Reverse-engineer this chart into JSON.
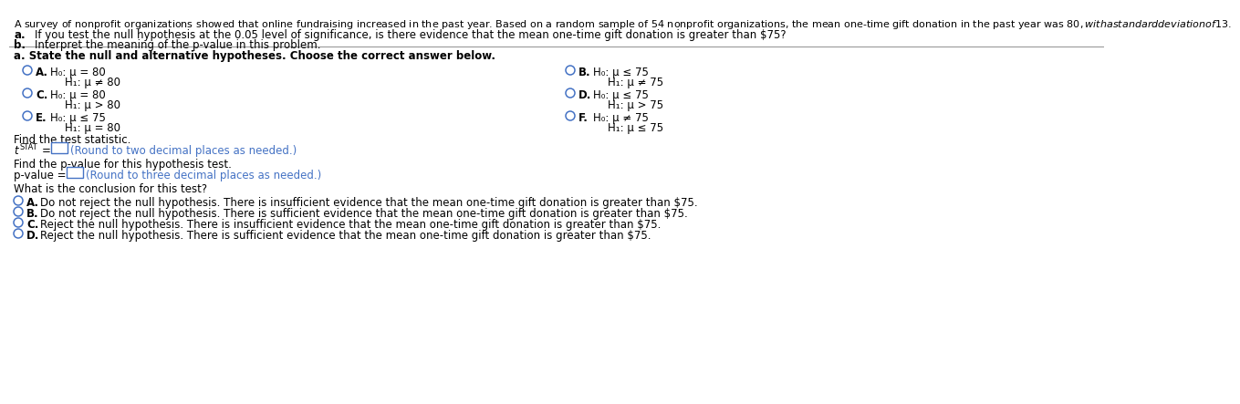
{
  "bg_color": "#ffffff",
  "header_text": "A survey of nonprofit organizations showed that online fundraising increased in the past year. Based on a random sample of 54 nonprofit organizations, the mean one-time gift donation in the past year was $80, with a standard deviation of $13.",
  "item_a_bold": "a.",
  "item_a_text": "     If you test the null hypothesis at the 0.05 level of significance, is there evidence that the mean one-time gift donation is greater than $75?",
  "item_b_bold": "b.",
  "item_b_text": "     Interpret the meaning of the p-value in this problem.",
  "section_a": "a. State the null and alternative hypotheses. Choose the correct answer below.",
  "optA_line1": "H₀: μ = 80",
  "optA_line2": "H₁: μ ≠ 80",
  "optB_line1": "H₀: μ ≤ 75",
  "optB_line2": "H₁: μ ≠ 75",
  "optC_line1": "H₀: μ = 80",
  "optC_line2": "H₁: μ > 80",
  "optD_line1": "H₀: μ ≤ 75",
  "optD_line2": "H₁: μ > 75",
  "optE_line1": "H₀: μ ≤ 75",
  "optE_line2": "H₁: μ = 80",
  "optF_line1": "H₀: μ ≠ 75",
  "optF_line2": "H₁: μ ≤ 75",
  "find_tstat": "Find the test statistic.",
  "find_pvalue": "Find the p-value for this hypothesis test.",
  "tstat_round": "(Round to two decimal places as needed.)",
  "pvalue_round": "(Round to three decimal places as needed.)",
  "conclusion_header": "What is the conclusion for this test?",
  "concl_A": "Do not reject the null hypothesis. There is insufficient evidence that the mean one-time gift donation is greater than $75.",
  "concl_B": "Do not reject the null hypothesis. There is sufficient evidence that the mean one-time gift donation is greater than $75.",
  "concl_C": "Reject the null hypothesis. There is insufficient evidence that the mean one-time gift donation is greater than $75.",
  "concl_D": "Reject the null hypothesis. There is sufficient evidence that the mean one-time gift donation is greater than $75.",
  "text_color": "#000000",
  "blue_color": "#4472c4",
  "divider_color": "#999999",
  "fs_header": 8.0,
  "fs_body": 8.5,
  "fs_small": 7.5,
  "fig_w": 12.0,
  "fig_h": 4.23
}
